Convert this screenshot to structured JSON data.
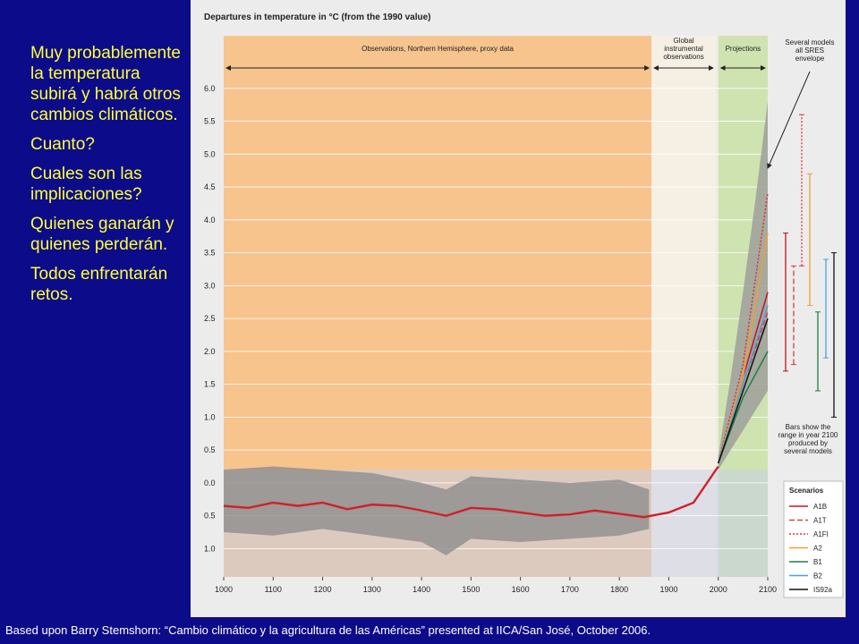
{
  "slide": {
    "bullets": [
      "Muy probablemente la temperatura subirá y habrá otros cambios climáticos.",
      "Cuanto?",
      "Cuales son las implicaciones?",
      "Quienes ganarán y quienes perderán.",
      "Todos enfrentarán retos."
    ],
    "footer": "Based upon Barry Stemshorn: “Cambio climático y la agricultura de las Américas” presented at IICA/San José, October 2006."
  },
  "chart_data": {
    "type": "line",
    "title": "Departures in temperature in °C (from the 1990 value)",
    "xlim": [
      1000,
      2100
    ],
    "xticks": [
      1000,
      1100,
      1200,
      1300,
      1400,
      1500,
      1600,
      1700,
      1800,
      1900,
      2000,
      2100
    ],
    "ylim": [
      -1.43,
      6.8
    ],
    "yticks": [
      {
        "value": 6,
        "label": "6.0"
      },
      {
        "value": 5.5,
        "label": "5.5"
      },
      {
        "value": 5,
        "label": "5.0"
      },
      {
        "value": 4.5,
        "label": "4.5"
      },
      {
        "value": 4,
        "label": "4.0"
      },
      {
        "value": 3.5,
        "label": "3.5"
      },
      {
        "value": 3,
        "label": "3.0"
      },
      {
        "value": 2.5,
        "label": "2.5"
      },
      {
        "value": 2,
        "label": "2.0"
      },
      {
        "value": 1.5,
        "label": "1.5"
      },
      {
        "value": 1,
        "label": "1.0"
      },
      {
        "value": 0.5,
        "label": "0.5"
      },
      {
        "value": 0,
        "label": "0.0"
      },
      {
        "value": -0.5,
        "label": "0.5"
      },
      {
        "value": -1,
        "label": "1.0"
      }
    ],
    "grid": true,
    "regions": [
      {
        "label": "Observations, Northern Hemisphere, proxy data",
        "from": 1000,
        "to": 1865,
        "color": "#f7c48e"
      },
      {
        "label": "Global instrumental observations",
        "from": 1865,
        "to": 1995,
        "color": "#f6efe4"
      },
      {
        "label": "Projections",
        "from": 2000,
        "to": 2100,
        "color": "#cfe3b0"
      }
    ],
    "bands": [
      {
        "color": "#8d8d8d",
        "x": [
          1000,
          1100,
          1200,
          1300,
          1400,
          1450,
          1500,
          1600,
          1700,
          1800,
          1860
        ],
        "lower": [
          -0.75,
          -0.8,
          -0.7,
          -0.8,
          -0.9,
          -1.1,
          -0.85,
          -0.9,
          -0.85,
          -0.8,
          -0.7
        ],
        "upper": [
          0.2,
          0.25,
          0.2,
          0.15,
          0.0,
          -0.1,
          0.1,
          0.05,
          0.0,
          0.05,
          -0.1
        ]
      },
      {
        "color": "#9a9a9a",
        "x": [
          2000,
          2025,
          2050,
          2075,
          2100
        ],
        "lower": [
          0.2,
          0.5,
          0.8,
          1.1,
          1.4
        ],
        "upper": [
          0.4,
          1.6,
          2.9,
          4.3,
          5.8
        ]
      }
    ],
    "series": [
      {
        "name": null,
        "color": "#d0202a",
        "dash": "solid",
        "x": [
          1000,
          1050,
          1100,
          1150,
          1200,
          1250,
          1300,
          1350,
          1400,
          1450,
          1500,
          1550,
          1600,
          1650,
          1700,
          1750,
          1800,
          1850,
          1900,
          1950,
          2000
        ],
        "values": [
          -0.35,
          -0.38,
          -0.3,
          -0.35,
          -0.3,
          -0.4,
          -0.33,
          -0.35,
          -0.42,
          -0.5,
          -0.38,
          -0.4,
          -0.45,
          -0.5,
          -0.48,
          -0.42,
          -0.47,
          -0.52,
          -0.45,
          -0.3,
          0.25
        ]
      },
      {
        "name": "A1B",
        "color": "#c8101e",
        "dash": "solid",
        "x": [
          2000,
          2050,
          2100
        ],
        "values": [
          0.3,
          1.6,
          2.9
        ],
        "range": [
          1.7,
          3.8
        ]
      },
      {
        "name": "A1T",
        "color": "#d84040",
        "dash": "6 3",
        "x": [
          2000,
          2050,
          2100
        ],
        "values": [
          0.3,
          1.5,
          2.6
        ],
        "range": [
          1.8,
          3.3
        ]
      },
      {
        "name": "A1FI",
        "color": "#e03030",
        "dash": "2 2",
        "x": [
          2000,
          2050,
          2100
        ],
        "values": [
          0.3,
          1.8,
          4.4
        ],
        "range": [
          3.3,
          5.6
        ]
      },
      {
        "name": "A2",
        "color": "#f0a030",
        "dash": "solid",
        "x": [
          2000,
          2050,
          2100
        ],
        "values": [
          0.3,
          1.6,
          3.8
        ],
        "range": [
          2.7,
          4.7
        ]
      },
      {
        "name": "B1",
        "color": "#1e8040",
        "dash": "solid",
        "x": [
          2000,
          2050,
          2100
        ],
        "values": [
          0.3,
          1.3,
          2.0
        ],
        "range": [
          1.4,
          2.6
        ]
      },
      {
        "name": "B2",
        "color": "#4aa0e0",
        "dash": "solid",
        "x": [
          2000,
          2050,
          2100
        ],
        "values": [
          0.3,
          1.5,
          2.7
        ],
        "range": [
          1.9,
          3.4
        ]
      },
      {
        "name": "IS92a",
        "color": "#111111",
        "dash": "solid",
        "x": [
          2000,
          2050,
          2100
        ],
        "values": [
          0.3,
          1.4,
          2.5
        ],
        "range": [
          1.0,
          3.5
        ]
      }
    ],
    "annotations": [
      "Several models all SRES envelope",
      "Bars show the range in year 2100 produced by several models"
    ],
    "legend_title": "Scenarios"
  }
}
